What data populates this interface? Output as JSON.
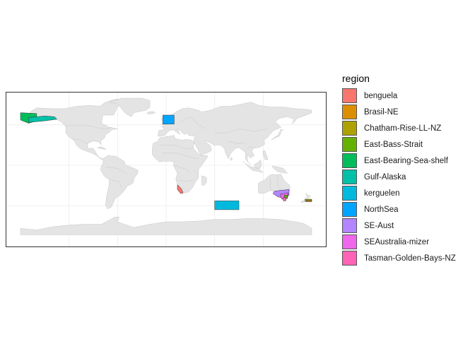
{
  "map": {
    "projection": "equirectangular",
    "lon_range": [
      -180,
      180
    ],
    "lat_range": [
      -90,
      90
    ],
    "background_color": "#ffffff",
    "land_color": "#e4e4e4",
    "border_color": "#c8c8c8",
    "grid": true
  },
  "legend": {
    "title": "region",
    "placement": "right",
    "items": [
      {
        "key": "benguela",
        "label": "benguela",
        "color": "#F8766D"
      },
      {
        "key": "brasil-ne",
        "label": "Brasil-NE",
        "color": "#DB8E00"
      },
      {
        "key": "chatham",
        "label": "Chatham-Rise-LL-NZ",
        "color": "#AEA200"
      },
      {
        "key": "east-bass",
        "label": "East-Bass-Strait",
        "color": "#64B200"
      },
      {
        "key": "east-bearing",
        "label": "East-Bearing-Sea-shelf",
        "color": "#00BD5C"
      },
      {
        "key": "gulf-alaska",
        "label": "Gulf-Alaska",
        "color": "#00C1A7"
      },
      {
        "key": "kerguelen",
        "label": "kerguelen",
        "color": "#00BADE"
      },
      {
        "key": "northsea",
        "label": "NorthSea",
        "color": "#00A6FF"
      },
      {
        "key": "se-aust",
        "label": "SE-Aust",
        "color": "#B385FF"
      },
      {
        "key": "seaustralia-mizer",
        "label": "SEAustralia-mizer",
        "color": "#EF67EB"
      },
      {
        "key": "tasman",
        "label": "Tasman-Golden-Bays-NZ",
        "color": "#FF63B6"
      }
    ]
  }
}
